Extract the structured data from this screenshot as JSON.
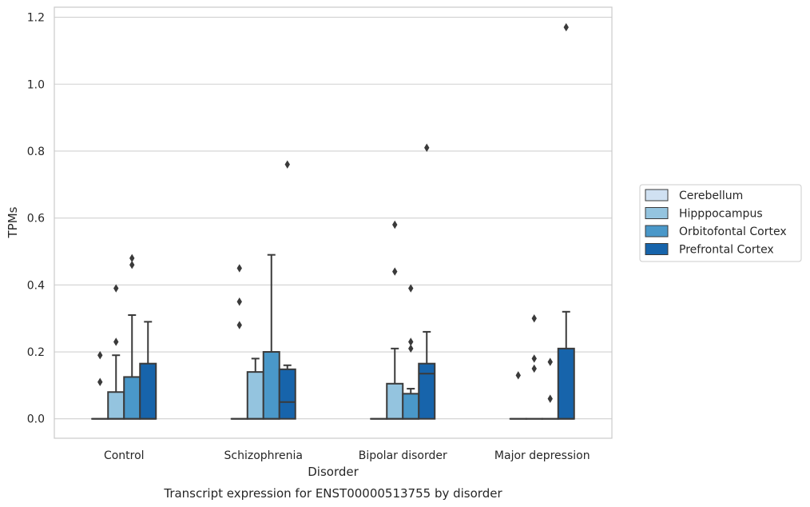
{
  "chart_data": {
    "type": "box",
    "caption": "Transcript expression for ENST00000513755 by disorder",
    "xlabel": "Disorder",
    "ylabel": "TPMs",
    "ylim": [
      -0.058,
      1.23
    ],
    "yticks": [
      "0.0",
      "0.2",
      "0.4",
      "0.6",
      "0.8",
      "1.0",
      "1.2"
    ],
    "ytick_values": [
      0,
      0.2,
      0.4,
      0.6,
      0.8,
      1.0,
      1.2
    ],
    "grid": "y",
    "legend_position": "right",
    "categories": [
      "Control",
      "Schizophrenia",
      "Bipolar disorder",
      "Major depression"
    ],
    "series": [
      {
        "name": "Cerebellum",
        "color": "#d0e1f2",
        "boxes": [
          {
            "q1": 0,
            "median": 0,
            "q3": 0,
            "whislo": 0,
            "whishi": 0,
            "fliers": [
              0.11,
              0.19
            ]
          },
          {
            "q1": 0,
            "median": 0,
            "q3": 0,
            "whislo": 0,
            "whishi": 0,
            "fliers": [
              0.28,
              0.35,
              0.45
            ]
          },
          {
            "q1": 0,
            "median": 0,
            "q3": 0,
            "whislo": 0,
            "whishi": 0,
            "fliers": []
          },
          {
            "q1": 0,
            "median": 0,
            "q3": 0,
            "whislo": 0,
            "whishi": 0,
            "fliers": [
              0.13
            ]
          }
        ]
      },
      {
        "name": "Hipppocampus",
        "color": "#94c4df",
        "boxes": [
          {
            "q1": 0,
            "median": 0,
            "q3": 0.08,
            "whislo": 0,
            "whishi": 0.19,
            "fliers": [
              0.23,
              0.39
            ]
          },
          {
            "q1": 0,
            "median": 0,
            "q3": 0.14,
            "whislo": 0,
            "whishi": 0.18,
            "fliers": []
          },
          {
            "q1": 0,
            "median": 0,
            "q3": 0.105,
            "whislo": 0,
            "whishi": 0.21,
            "fliers": [
              0.44,
              0.58
            ]
          },
          {
            "q1": 0,
            "median": 0,
            "q3": 0,
            "whislo": 0,
            "whishi": 0,
            "fliers": [
              0.15,
              0.18,
              0.3
            ]
          }
        ]
      },
      {
        "name": "Orbitofontal Cortex",
        "color": "#4a98c9",
        "boxes": [
          {
            "q1": 0,
            "median": 0,
            "q3": 0.125,
            "whislo": 0,
            "whishi": 0.31,
            "fliers": [
              0.46,
              0.48
            ]
          },
          {
            "q1": 0,
            "median": 0,
            "q3": 0.2,
            "whislo": 0,
            "whishi": 0.49,
            "fliers": []
          },
          {
            "q1": 0,
            "median": 0,
            "q3": 0.075,
            "whislo": 0,
            "whishi": 0.09,
            "fliers": [
              0.21,
              0.23,
              0.39
            ]
          },
          {
            "q1": 0,
            "median": 0,
            "q3": 0,
            "whislo": 0,
            "whishi": 0,
            "fliers": [
              0.06,
              0.17
            ]
          }
        ]
      },
      {
        "name": "Prefrontal Cortex",
        "color": "#1764ab",
        "boxes": [
          {
            "q1": 0,
            "median": 0,
            "q3": 0.165,
            "whislo": 0,
            "whishi": 0.29,
            "fliers": []
          },
          {
            "q1": 0,
            "median": 0.05,
            "q3": 0.148,
            "whislo": 0,
            "whishi": 0.16,
            "fliers": [
              0.76
            ]
          },
          {
            "q1": 0,
            "median": 0.135,
            "q3": 0.165,
            "whislo": 0,
            "whishi": 0.26,
            "fliers": [
              0.81
            ]
          },
          {
            "q1": 0,
            "median": 0,
            "q3": 0.21,
            "whislo": 0,
            "whishi": 0.32,
            "fliers": [
              1.17
            ]
          }
        ]
      }
    ]
  }
}
